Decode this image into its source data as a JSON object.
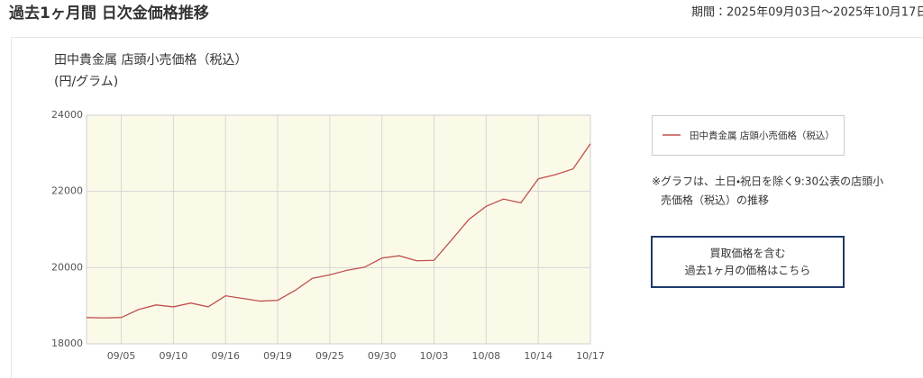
{
  "header": {
    "title": "過去1ヶ月間 日次金価格推移",
    "period": "期間：2025年09月03日〜2025年10月17日"
  },
  "chart_data": {
    "type": "line",
    "title": "田中貴金属 店頭小売価格（税込）",
    "subtitle": "(円/グラム)",
    "categories": [
      null,
      null,
      "09/05",
      null,
      null,
      "09/10",
      null,
      null,
      "09/16",
      null,
      null,
      "09/19",
      null,
      null,
      "09/25",
      null,
      null,
      "09/30",
      null,
      null,
      "10/03",
      null,
      null,
      "10/08",
      null,
      null,
      "10/14",
      null,
      null,
      "10/17"
    ],
    "series": [
      {
        "name": "田中貴金属 店頭小売価格（税込）",
        "color": "#c0504d",
        "values": [
          18690,
          18680,
          18690,
          18900,
          19020,
          18970,
          19070,
          18970,
          19260,
          19190,
          19120,
          19140,
          19400,
          19720,
          19810,
          19930,
          20010,
          20250,
          20310,
          20180,
          20190,
          20720,
          21260,
          21610,
          21800,
          21700,
          22330,
          22440,
          22590,
          23250
        ]
      }
    ],
    "ylim": [
      18000,
      24000
    ],
    "yticks": [
      18000,
      20000,
      22000,
      24000
    ],
    "grid": true,
    "legend": "right",
    "background": "#fbfae8"
  },
  "note": [
    "※グラフは、土日・祝日を除く9:30公表の店頭小",
    "売価格（税込）の推移"
  ],
  "button": [
    "買取価格を含む",
    "過去1ヶ月の価格はこちら"
  ]
}
